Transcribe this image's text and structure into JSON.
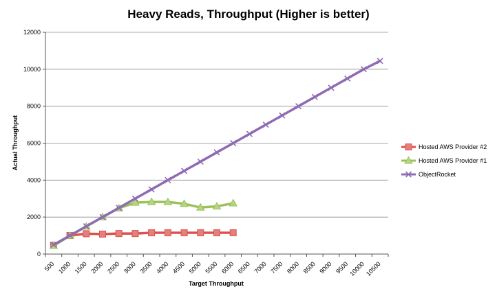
{
  "chart_data": {
    "type": "line",
    "title": "Heavy Reads, Throughput (Higher is better)",
    "xlabel": "Target Throughput",
    "ylabel": "Actual Throughput",
    "categories": [
      "500",
      "1000",
      "1500",
      "2000",
      "2500",
      "3000",
      "3500",
      "4000",
      "4500",
      "5000",
      "5500",
      "6000",
      "6500",
      "7000",
      "7500",
      "8000",
      "8500",
      "9000",
      "9500",
      "10000",
      "10500"
    ],
    "ylim": [
      0,
      12000
    ],
    "yticks": [
      0,
      2000,
      4000,
      6000,
      8000,
      10000,
      12000
    ],
    "grid": "horizontal",
    "legend_position": "right",
    "series": [
      {
        "name": "Hosted AWS Provider #2",
        "color": "#d9534f",
        "marker": "square",
        "values": [
          480,
          1000,
          1100,
          1080,
          1110,
          1110,
          1150,
          1150,
          1150,
          1150,
          1150,
          1150,
          null,
          null,
          null,
          null,
          null,
          null,
          null,
          null,
          null
        ]
      },
      {
        "name": "Hosted AWS Provider #1",
        "color": "#9bc15a",
        "marker": "triangle",
        "values": [
          450,
          990,
          1490,
          2000,
          2480,
          2780,
          2820,
          2820,
          2720,
          2520,
          2580,
          2750,
          null,
          null,
          null,
          null,
          null,
          null,
          null,
          null,
          null
        ]
      },
      {
        "name": "ObjectRocket",
        "color": "#8e6bb3",
        "marker": "x",
        "values": [
          500,
          1000,
          1500,
          2000,
          2500,
          3000,
          3500,
          4000,
          4500,
          5000,
          5500,
          6000,
          6500,
          7000,
          7500,
          8000,
          8500,
          9000,
          9500,
          10000,
          10450
        ]
      }
    ]
  }
}
